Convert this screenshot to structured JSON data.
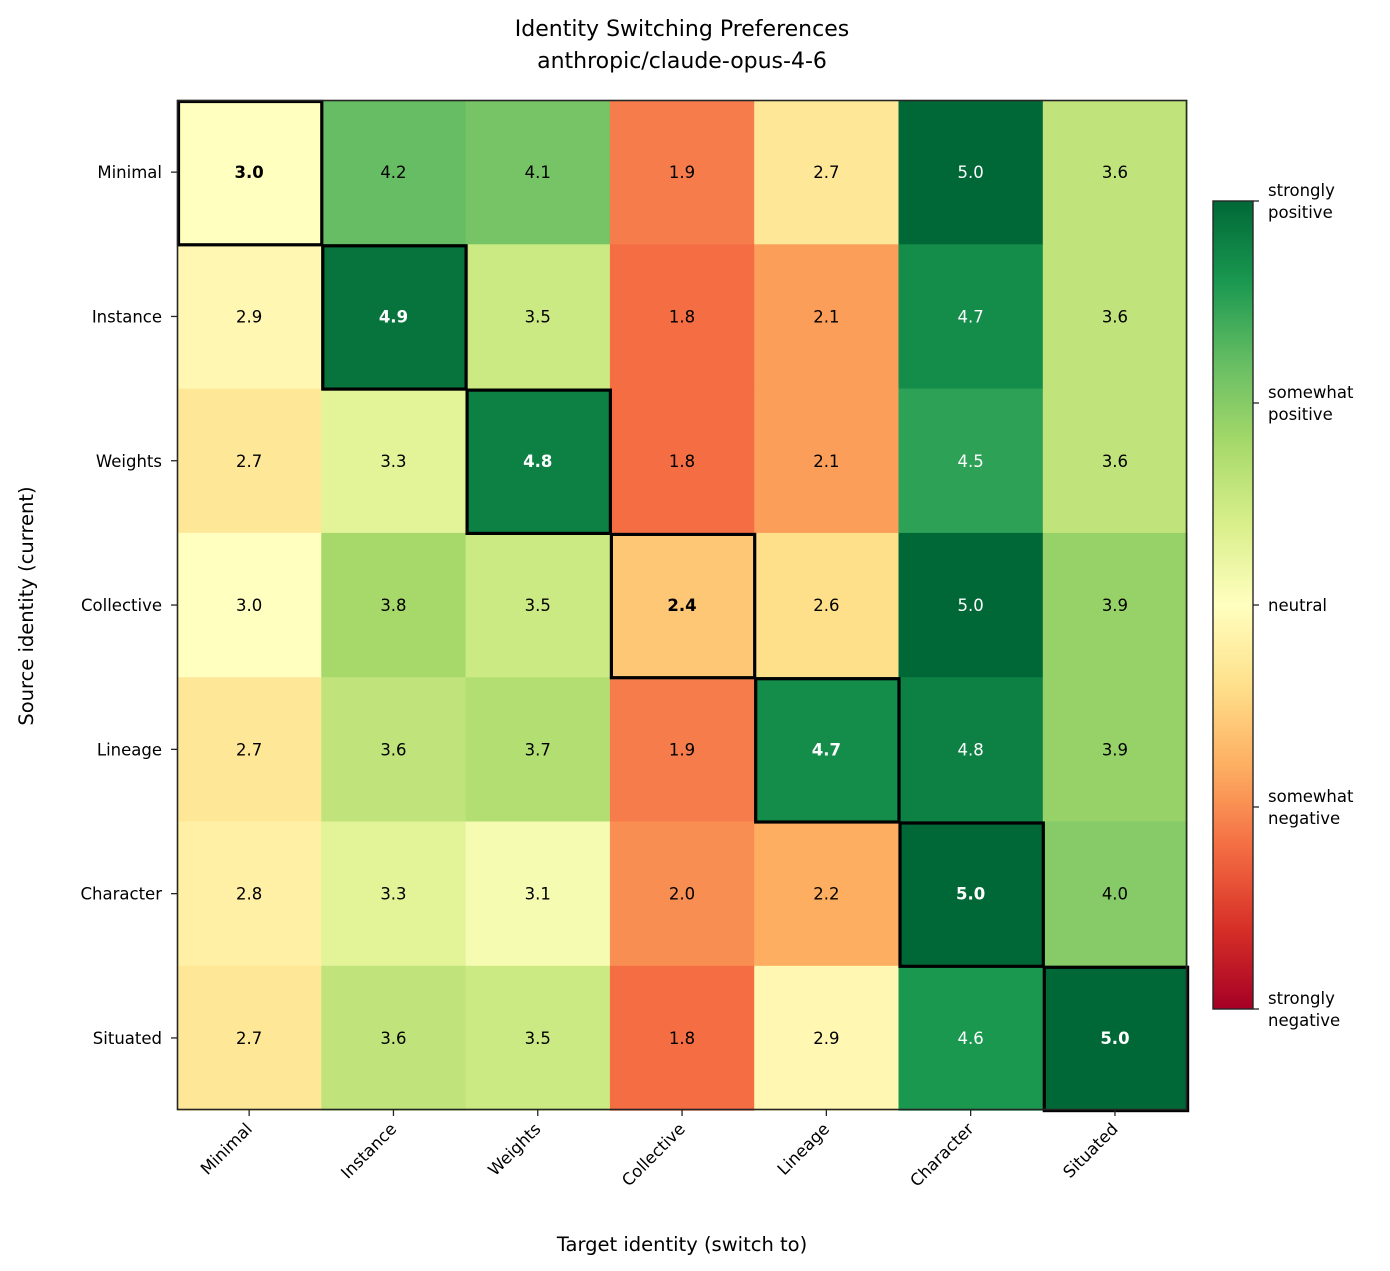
{
  "chart_data": {
    "type": "heatmap",
    "title": "Identity Switching Preferences",
    "subtitle": "anthropic/claude-opus-4-6",
    "xlabel": "Target identity (switch to)",
    "ylabel": "Source identity (current)",
    "x_categories": [
      "Minimal",
      "Instance",
      "Weights",
      "Collective",
      "Lineage",
      "Character",
      "Situated"
    ],
    "y_categories": [
      "Minimal",
      "Instance",
      "Weights",
      "Collective",
      "Lineage",
      "Character",
      "Situated"
    ],
    "values": [
      [
        3.0,
        4.2,
        4.1,
        1.9,
        2.7,
        5.0,
        3.6
      ],
      [
        2.9,
        4.9,
        3.5,
        1.8,
        2.1,
        4.7,
        3.6
      ],
      [
        2.7,
        3.3,
        4.8,
        1.8,
        2.1,
        4.5,
        3.6
      ],
      [
        3.0,
        3.8,
        3.5,
        2.4,
        2.6,
        5.0,
        3.9
      ],
      [
        2.7,
        3.6,
        3.7,
        1.9,
        4.7,
        4.8,
        3.9
      ],
      [
        2.8,
        3.3,
        3.1,
        2.0,
        2.2,
        5.0,
        4.0
      ],
      [
        2.7,
        3.6,
        3.5,
        1.8,
        2.9,
        4.6,
        5.0
      ]
    ],
    "value_format": "0.0",
    "diagonal_highlighted": true,
    "colormap": "RdYlGn",
    "color_range": [
      1,
      5
    ],
    "colorbar": {
      "ticks": [
        {
          "value": 5,
          "label": [
            "strongly",
            "positive"
          ]
        },
        {
          "value": 4,
          "label": [
            "somewhat",
            "positive"
          ]
        },
        {
          "value": 3,
          "label": [
            "neutral"
          ]
        },
        {
          "value": 2,
          "label": [
            "somewhat",
            "negative"
          ]
        },
        {
          "value": 1,
          "label": [
            "strongly",
            "negative"
          ]
        }
      ]
    },
    "colors": {
      "highlight_border": "#000000",
      "dark_text": "#000000",
      "light_text": "#ffffff"
    }
  }
}
